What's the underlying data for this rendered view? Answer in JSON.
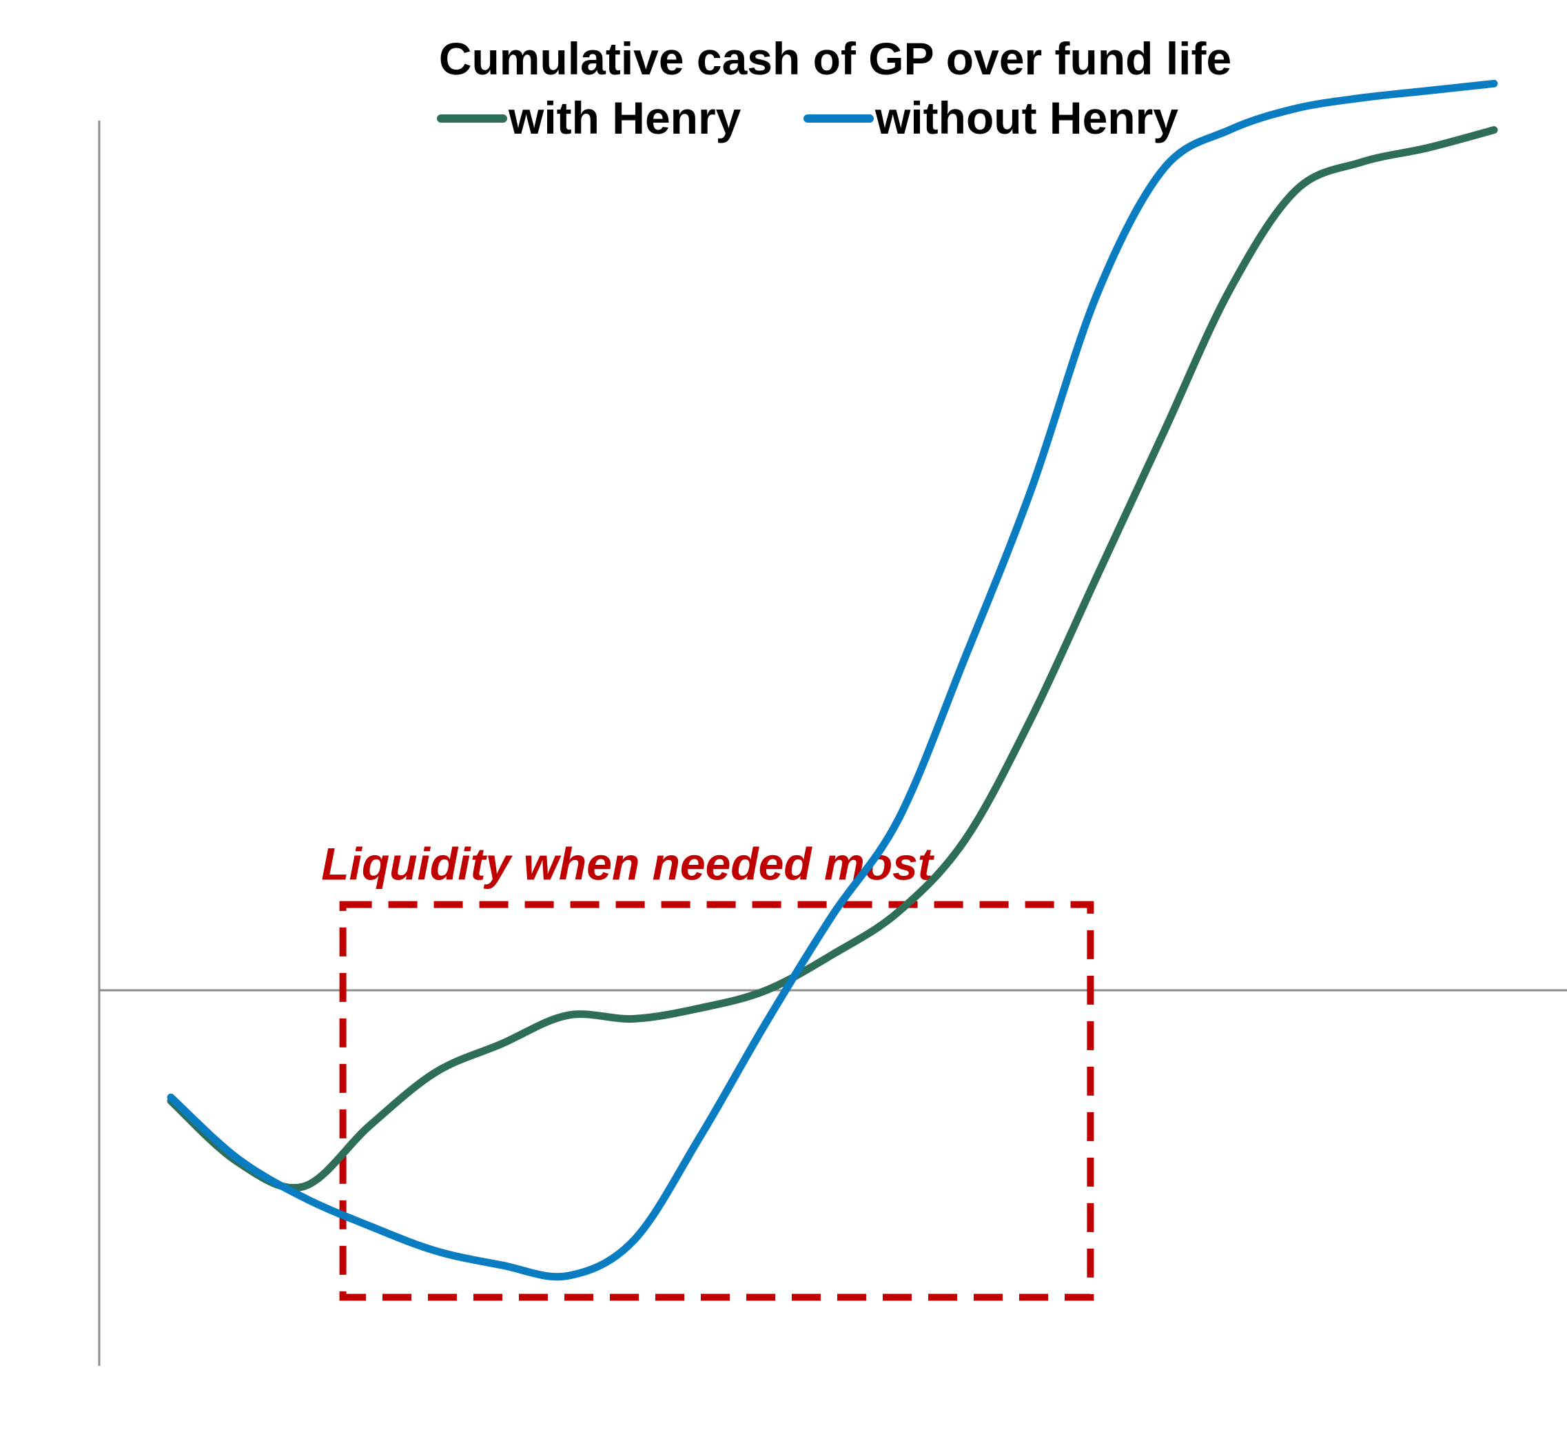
{
  "chart_data": {
    "type": "line",
    "title": "Cumulative cash of GP over fund life",
    "xlabel": "",
    "ylabel": "",
    "x_ticks_shown": false,
    "y_ticks_shown": false,
    "grid": false,
    "legend_placement": "top-center",
    "x": [
      0,
      1,
      2,
      3,
      4,
      5,
      6,
      7,
      8,
      9,
      10,
      11,
      12,
      13,
      14,
      15,
      16,
      17,
      18,
      19,
      20
    ],
    "xlim": [
      0,
      20
    ],
    "ylim": [
      -100,
      240
    ],
    "series": [
      {
        "name": "with Henry",
        "color": "#2e6e56",
        "values": [
          -31,
          -48,
          -55,
          -38,
          -23,
          -15,
          -7,
          -8,
          -5,
          0,
          10,
          22,
          42,
          76,
          116,
          156,
          196,
          224,
          232,
          236,
          241
        ]
      },
      {
        "name": "without Henry",
        "color": "#0a7cc2",
        "values": [
          -30,
          -47,
          -58,
          -66,
          -73,
          -77,
          -80,
          -70,
          -41,
          -9,
          21,
          48,
          93,
          140,
          195,
          230,
          241,
          247,
          250,
          252,
          254
        ]
      }
    ],
    "annotation": {
      "text": "Liquidity when needed most",
      "color": "#c00000",
      "x_range": [
        2.6,
        13.9
      ],
      "y_range": [
        -86,
        24
      ]
    }
  }
}
